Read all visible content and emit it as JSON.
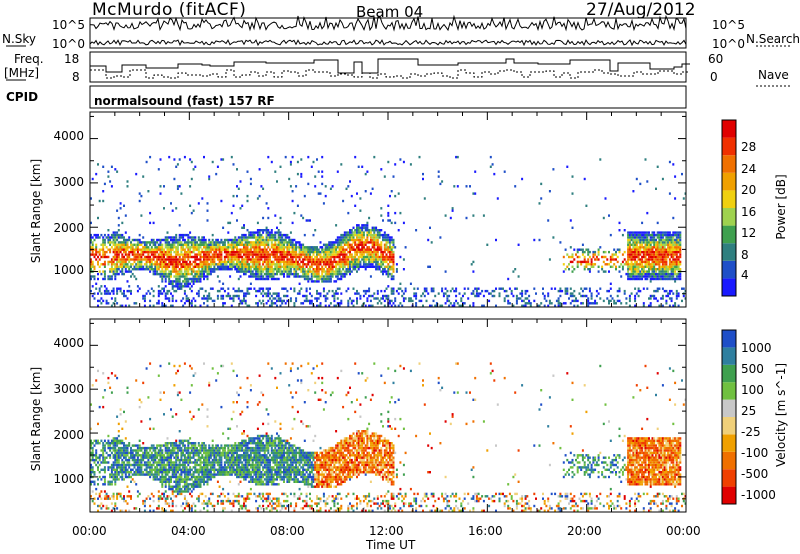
{
  "header": {
    "station": "McMurdo (fitACF)",
    "beam": "Beam 04",
    "date": "27/Aug/2012"
  },
  "left_labels": {
    "nsky": "N.Sky",
    "freq": "Freq.",
    "freq_unit": "[MHz]",
    "cpid": "CPID"
  },
  "right_labels": {
    "nsearch": "N.Search",
    "nave": "Nave"
  },
  "cpid_text": "normalsound (fast) 157 RF",
  "noise_panel": {
    "left_ticks": [
      "10^5",
      "10^0"
    ],
    "right_ticks": [
      "10^5",
      "10^0"
    ]
  },
  "freq_panel": {
    "left_ticks": [
      "18",
      "8"
    ],
    "right_ticks": [
      "60",
      "0"
    ]
  },
  "colors": {
    "power": [
      "#1a1aff",
      "#1f4fc8",
      "#2f7f7f",
      "#3fa04f",
      "#9fd24f",
      "#f0d010",
      "#f0a000",
      "#f07000",
      "#f03000",
      "#e00000"
    ],
    "velocity": [
      "#e00000",
      "#f04000",
      "#f07000",
      "#f0a000",
      "#f0d07a",
      "#c8c8c8",
      "#70c040",
      "#3fa04f",
      "#2f7f9f",
      "#1f4fc8"
    ]
  },
  "chart_data": [
    {
      "type": "heatmap",
      "quantity": "Power",
      "ylabel": "Slant Range [km]",
      "yticks": [
        "1000",
        "2000",
        "3000",
        "4000"
      ],
      "ylim": [
        200,
        4600
      ],
      "xlim": [
        0,
        24
      ],
      "colorbar_label": "Power [dB]",
      "colorbar_ticks": [
        "4",
        "8",
        "12",
        "16",
        "20",
        "24",
        "28"
      ],
      "colorbar_range": [
        0,
        32
      ]
    },
    {
      "type": "heatmap",
      "quantity": "Velocity",
      "ylabel": "Slant Range [km]",
      "yticks": [
        "1000",
        "2000",
        "3000",
        "4000"
      ],
      "ylim": [
        200,
        4600
      ],
      "xlim": [
        0,
        24
      ],
      "colorbar_label": "Velocity [m s^-1]",
      "colorbar_ticks": [
        "1000",
        "500",
        "100",
        "25",
        "-25",
        "-100",
        "-500",
        "-1000"
      ]
    }
  ],
  "x_axis": {
    "ticks": [
      "00:00",
      "04:00",
      "08:00",
      "12:00",
      "16:00",
      "20:00",
      "00:00"
    ],
    "label": "Time UT"
  }
}
